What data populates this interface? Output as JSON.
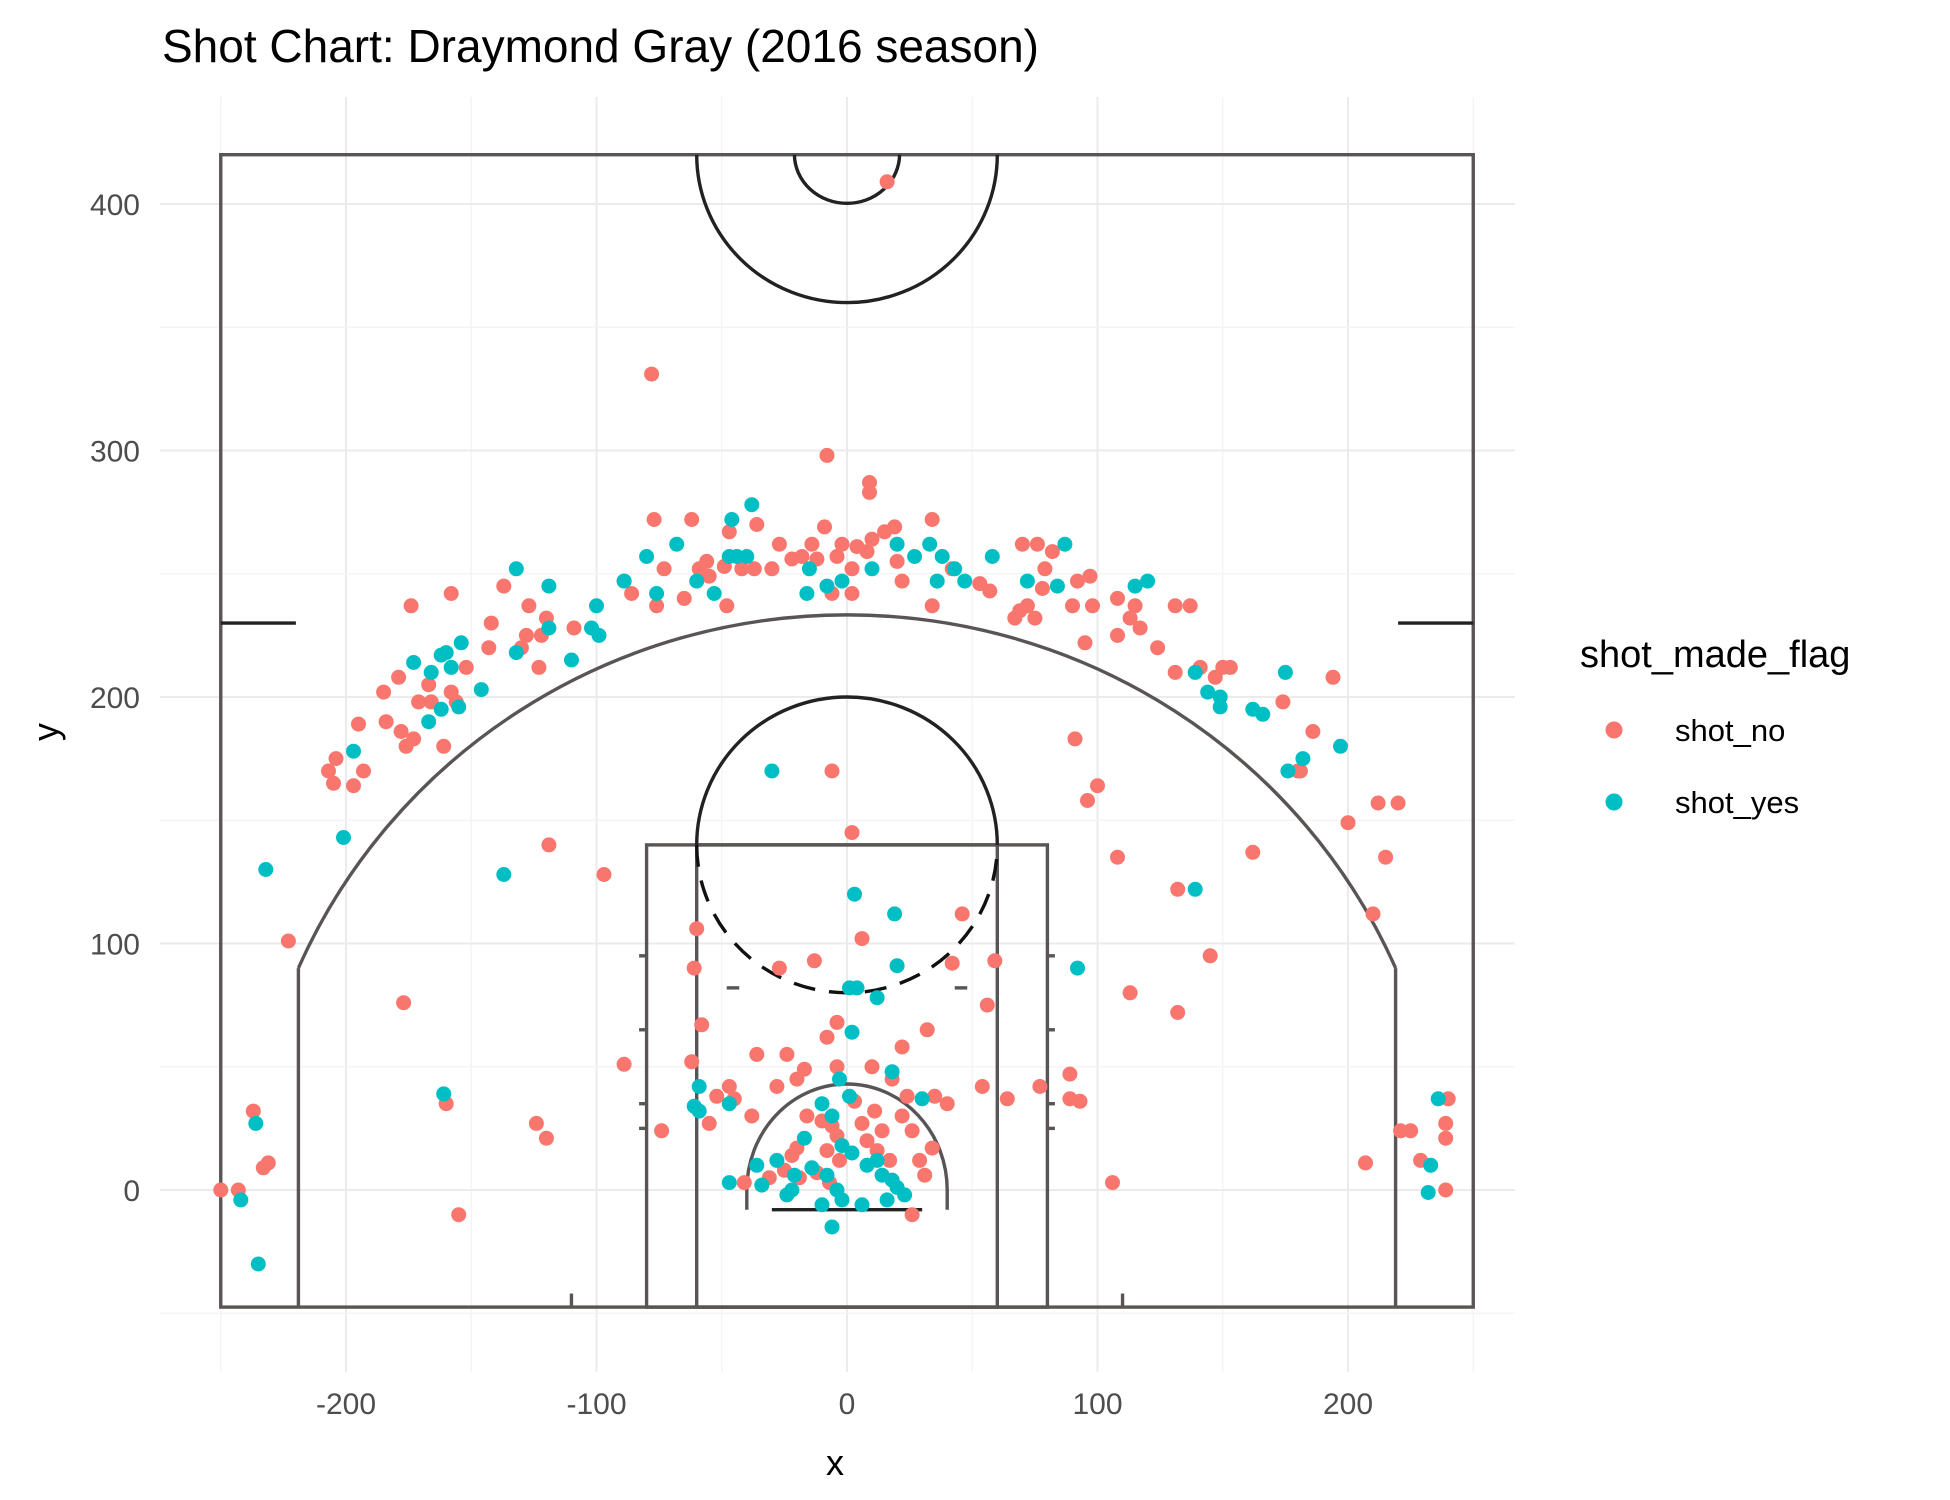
{
  "chart_data": {
    "type": "scatter",
    "title": "Shot Chart: Draymond Gray (2016 season)",
    "xlabel": "x",
    "ylabel": "y",
    "xlim": [
      -250,
      250
    ],
    "ylim": [
      -47.5,
      420
    ],
    "x_ticks": [
      -200,
      -100,
      0,
      100,
      200
    ],
    "y_ticks": [
      0,
      100,
      200,
      300,
      400
    ],
    "grid": true,
    "legend": {
      "title": "shot_made_flag",
      "position": "right",
      "entries": [
        "shot_no",
        "shot_yes"
      ]
    },
    "series": [
      {
        "name": "shot_no",
        "color": "#F8766D",
        "points": [
          [
            16,
            409
          ],
          [
            -78,
            331
          ],
          [
            -8,
            298
          ],
          [
            9,
            287
          ],
          [
            9,
            283
          ],
          [
            -77,
            272
          ],
          [
            -62,
            272
          ],
          [
            -36,
            270
          ],
          [
            -47,
            267
          ],
          [
            -9,
            269
          ],
          [
            19,
            269
          ],
          [
            34,
            272
          ],
          [
            -27,
            262
          ],
          [
            -14,
            262
          ],
          [
            -2,
            262
          ],
          [
            4,
            261
          ],
          [
            10,
            264
          ],
          [
            15,
            267
          ],
          [
            -18,
            257
          ],
          [
            -4,
            257
          ],
          [
            2,
            252
          ],
          [
            8,
            259
          ],
          [
            20,
            255
          ],
          [
            -56,
            255
          ],
          [
            -55,
            249
          ],
          [
            -49,
            253
          ],
          [
            -42,
            252
          ],
          [
            -30,
            252
          ],
          [
            -22,
            256
          ],
          [
            -12,
            256
          ],
          [
            22,
            247
          ],
          [
            42,
            252
          ],
          [
            53,
            246
          ],
          [
            57,
            243
          ],
          [
            34,
            237
          ],
          [
            -48,
            237
          ],
          [
            -59,
            252
          ],
          [
            -73,
            252
          ],
          [
            -76,
            237
          ],
          [
            -65,
            240
          ],
          [
            -6,
            242
          ],
          [
            2,
            242
          ],
          [
            -37,
            252
          ],
          [
            70,
            262
          ],
          [
            76,
            262
          ],
          [
            79,
            252
          ],
          [
            78,
            244
          ],
          [
            82,
            259
          ],
          [
            67,
            232
          ],
          [
            72,
            237
          ],
          [
            69,
            235
          ],
          [
            75,
            232
          ],
          [
            90,
            237
          ],
          [
            92,
            247
          ],
          [
            97,
            249
          ],
          [
            98,
            237
          ],
          [
            108,
            240
          ],
          [
            113,
            232
          ],
          [
            95,
            222
          ],
          [
            108,
            225
          ],
          [
            117,
            228
          ],
          [
            115,
            237
          ],
          [
            124,
            220
          ],
          [
            131,
            237
          ],
          [
            137,
            237
          ],
          [
            131,
            210
          ],
          [
            141,
            212
          ],
          [
            150,
            212
          ],
          [
            153,
            212
          ],
          [
            147,
            208
          ],
          [
            174,
            198
          ],
          [
            180,
            170
          ],
          [
            186,
            186
          ],
          [
            194,
            208
          ],
          [
            200,
            149
          ],
          [
            212,
            157
          ],
          [
            215,
            135
          ],
          [
            220,
            157
          ],
          [
            210,
            112
          ],
          [
            207,
            11
          ],
          [
            225,
            24
          ],
          [
            221,
            24
          ],
          [
            229,
            12
          ],
          [
            240,
            37
          ],
          [
            239,
            27
          ],
          [
            239,
            21
          ],
          [
            239,
            0
          ],
          [
            162,
            137
          ],
          [
            181,
            170
          ],
          [
            100,
            164
          ],
          [
            96,
            158
          ],
          [
            91,
            183
          ],
          [
            -237,
            32
          ],
          [
            -243,
            0
          ],
          [
            -250,
            0
          ],
          [
            -233,
            9
          ],
          [
            -231,
            11
          ],
          [
            -223,
            101
          ],
          [
            -207,
            170
          ],
          [
            -205,
            165
          ],
          [
            -204,
            175
          ],
          [
            -197,
            164
          ],
          [
            -195,
            189
          ],
          [
            -193,
            170
          ],
          [
            -185,
            202
          ],
          [
            -184,
            190
          ],
          [
            -178,
            186
          ],
          [
            -176,
            180
          ],
          [
            -179,
            208
          ],
          [
            -174,
            237
          ],
          [
            -171,
            198
          ],
          [
            -173,
            183
          ],
          [
            -167,
            205
          ],
          [
            -166,
            198
          ],
          [
            -158,
            242
          ],
          [
            -156,
            198
          ],
          [
            -158,
            202
          ],
          [
            -161,
            180
          ],
          [
            -152,
            212
          ],
          [
            -142,
            230
          ],
          [
            -137,
            245
          ],
          [
            -143,
            220
          ],
          [
            -130,
            220
          ],
          [
            -128,
            225
          ],
          [
            -127,
            237
          ],
          [
            -122,
            225
          ],
          [
            -120,
            232
          ],
          [
            -109,
            228
          ],
          [
            -89,
            247
          ],
          [
            -86,
            242
          ],
          [
            -123,
            212
          ],
          [
            -124,
            27
          ],
          [
            -120,
            21
          ],
          [
            -119,
            140
          ],
          [
            -97,
            128
          ],
          [
            -89,
            51
          ],
          [
            -177,
            76
          ],
          [
            -155,
            -10
          ],
          [
            -160,
            35
          ],
          [
            -74,
            24
          ],
          [
            -62,
            52
          ],
          [
            -61,
            90
          ],
          [
            -60,
            106
          ],
          [
            -58,
            67
          ],
          [
            -52,
            38
          ],
          [
            -55,
            27
          ],
          [
            -47,
            42
          ],
          [
            -45,
            37
          ],
          [
            -38,
            30
          ],
          [
            -36,
            55
          ],
          [
            -27,
            90
          ],
          [
            -24,
            55
          ],
          [
            -20,
            45
          ],
          [
            -13,
            93
          ],
          [
            -6,
            170
          ],
          [
            2,
            145
          ],
          [
            6,
            102
          ],
          [
            -4,
            68
          ],
          [
            -8,
            62
          ],
          [
            -4,
            50
          ],
          [
            -17,
            49
          ],
          [
            -28,
            42
          ],
          [
            -16,
            30
          ],
          [
            -10,
            28
          ],
          [
            -6,
            26
          ],
          [
            -4,
            22
          ],
          [
            -8,
            16
          ],
          [
            -3,
            12
          ],
          [
            3,
            36
          ],
          [
            6,
            27
          ],
          [
            11,
            32
          ],
          [
            14,
            24
          ],
          [
            8,
            20
          ],
          [
            12,
            16
          ],
          [
            17,
            12
          ],
          [
            22,
            30
          ],
          [
            26,
            24
          ],
          [
            29,
            12
          ],
          [
            31,
            6
          ],
          [
            34,
            17
          ],
          [
            26,
            -10
          ],
          [
            -22,
            14
          ],
          [
            -25,
            8
          ],
          [
            -31,
            5
          ],
          [
            -19,
            5
          ],
          [
            -12,
            7
          ],
          [
            -7,
            3
          ],
          [
            22,
            58
          ],
          [
            10,
            50
          ],
          [
            32,
            65
          ],
          [
            42,
            92
          ],
          [
            46,
            112
          ],
          [
            59,
            93
          ],
          [
            56,
            75
          ],
          [
            64,
            37
          ],
          [
            54,
            42
          ],
          [
            77,
            42
          ],
          [
            89,
            37
          ],
          [
            89,
            47
          ],
          [
            93,
            36
          ],
          [
            106,
            3
          ],
          [
            132,
            72
          ],
          [
            113,
            80
          ],
          [
            145,
            95
          ],
          [
            132,
            122
          ],
          [
            108,
            135
          ],
          [
            24,
            38
          ],
          [
            18,
            45
          ],
          [
            35,
            38
          ],
          [
            40,
            35
          ],
          [
            -41,
            3
          ],
          [
            -20,
            17
          ]
        ]
      },
      {
        "name": "shot_yes",
        "color": "#00BFC4",
        "points": [
          [
            -38,
            278
          ],
          [
            -46,
            272
          ],
          [
            -40,
            257
          ],
          [
            -47,
            257
          ],
          [
            -15,
            252
          ],
          [
            -8,
            245
          ],
          [
            -2,
            247
          ],
          [
            10,
            252
          ],
          [
            20,
            262
          ],
          [
            27,
            257
          ],
          [
            33,
            262
          ],
          [
            38,
            257
          ],
          [
            43,
            252
          ],
          [
            36,
            247
          ],
          [
            47,
            247
          ],
          [
            58,
            257
          ],
          [
            72,
            247
          ],
          [
            84,
            245
          ],
          [
            87,
            262
          ],
          [
            -80,
            257
          ],
          [
            -76,
            242
          ],
          [
            -68,
            262
          ],
          [
            -60,
            247
          ],
          [
            -53,
            242
          ],
          [
            -16,
            242
          ],
          [
            -44,
            257
          ],
          [
            -89,
            247
          ],
          [
            -100,
            237
          ],
          [
            -99,
            225
          ],
          [
            -102,
            228
          ],
          [
            -110,
            215
          ],
          [
            -119,
            245
          ],
          [
            -132,
            252
          ],
          [
            -132,
            218
          ],
          [
            -119,
            228
          ],
          [
            -146,
            203
          ],
          [
            -160,
            218
          ],
          [
            -162,
            217
          ],
          [
            -166,
            210
          ],
          [
            -158,
            212
          ],
          [
            -154,
            222
          ],
          [
            -167,
            190
          ],
          [
            -173,
            214
          ],
          [
            -162,
            195
          ],
          [
            -155,
            196
          ],
          [
            -197,
            178
          ],
          [
            -201,
            143
          ],
          [
            -232,
            130
          ],
          [
            -137,
            128
          ],
          [
            -161,
            39
          ],
          [
            -236,
            27
          ],
          [
            -242,
            -4
          ],
          [
            -235,
            -30
          ],
          [
            115,
            245
          ],
          [
            120,
            247
          ],
          [
            139,
            210
          ],
          [
            144,
            202
          ],
          [
            149,
            196
          ],
          [
            149,
            200
          ],
          [
            162,
            195
          ],
          [
            166,
            193
          ],
          [
            175,
            210
          ],
          [
            176,
            170
          ],
          [
            182,
            175
          ],
          [
            197,
            180
          ],
          [
            139,
            122
          ],
          [
            92,
            90
          ],
          [
            -30,
            170
          ],
          [
            3,
            120
          ],
          [
            19,
            112
          ],
          [
            20,
            91
          ],
          [
            4,
            82
          ],
          [
            1,
            82
          ],
          [
            12,
            78
          ],
          [
            2,
            64
          ],
          [
            -47,
            35
          ],
          [
            -59,
            42
          ],
          [
            -59,
            32
          ],
          [
            -36,
            10
          ],
          [
            -47,
            3
          ],
          [
            -22,
            0
          ],
          [
            -10,
            -6
          ],
          [
            -6,
            -15
          ],
          [
            -2,
            -4
          ],
          [
            -8,
            6
          ],
          [
            -14,
            9
          ],
          [
            -17,
            21
          ],
          [
            -6,
            30
          ],
          [
            -10,
            35
          ],
          [
            -3,
            45
          ],
          [
            1,
            38
          ],
          [
            8,
            10
          ],
          [
            14,
            6
          ],
          [
            18,
            4
          ],
          [
            20,
            1
          ],
          [
            23,
            -2
          ],
          [
            16,
            -4
          ],
          [
            6,
            -6
          ],
          [
            -4,
            0
          ],
          [
            2,
            15
          ],
          [
            12,
            12
          ],
          [
            -2,
            18
          ],
          [
            -21,
            6
          ],
          [
            -24,
            -2
          ],
          [
            -34,
            2
          ],
          [
            -28,
            12
          ],
          [
            18,
            48
          ],
          [
            30,
            37
          ],
          [
            232,
            -1
          ],
          [
            233,
            10
          ],
          [
            236,
            37
          ],
          [
            -61,
            34
          ]
        ]
      }
    ]
  }
}
